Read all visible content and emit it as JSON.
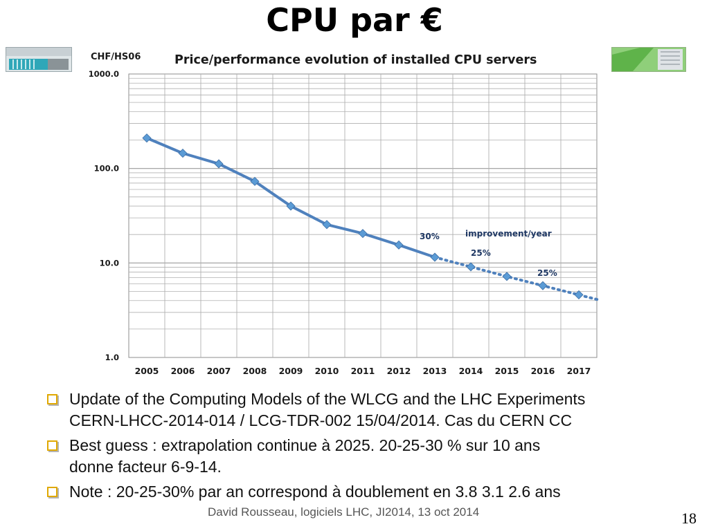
{
  "slide": {
    "title": "CPU par €",
    "footer": "David Rousseau, logiciels LHC, JI2014, 13 oct 2014",
    "page_number": "18"
  },
  "bullets": [
    {
      "lines": [
        "Update of the Computing Models of the WLCG and the LHC Experiments",
        "CERN-LHCC-2014-014 / LCG-TDR-002 15/04/2014. Cas du CERN CC"
      ]
    },
    {
      "lines": [
        "Best guess : extrapolation continue à 2025. 20-25-30 % sur 10 ans",
        "donne facteur 6-9-14."
      ]
    },
    {
      "lines": [
        "Note : 20-25-30% par an correspond à doublement en 3.8 3.1 2.6 ans"
      ]
    }
  ],
  "colors": {
    "series": "#4f81bd",
    "marker": "#5b9bd5",
    "annotation": "#1f3864",
    "grid": "#b0b0b0",
    "bullet": "#e0a800"
  },
  "chart_data": {
    "type": "line",
    "title": "Price/performance evolution of installed CPU servers",
    "ylabel": "CHF/HS06",
    "yscale": "log",
    "ylim": [
      1.0,
      1000.0
    ],
    "ytick_labels": [
      "1.0",
      "10.0",
      "100.0",
      "1000.0"
    ],
    "categories": [
      "2005",
      "2006",
      "2007",
      "2008",
      "2009",
      "2010",
      "2011",
      "2012",
      "2013",
      "2014",
      "2015",
      "2016",
      "2017"
    ],
    "series": [
      {
        "style": "solid",
        "x": [
          "2005",
          "2006",
          "2007",
          "2008",
          "2009",
          "2010",
          "2011",
          "2012",
          "2013"
        ],
        "values": [
          210,
          145,
          112,
          73,
          40,
          25.5,
          20.5,
          15.5,
          11.5
        ]
      },
      {
        "style": "dotted",
        "x": [
          "2013",
          "2014",
          "2015",
          "2016",
          "2017"
        ],
        "values": [
          11.5,
          9.1,
          7.2,
          5.75,
          4.6
        ]
      }
    ],
    "annotations": [
      "30%",
      "improvement/year",
      "25%",
      "25%"
    ],
    "grid": true
  }
}
